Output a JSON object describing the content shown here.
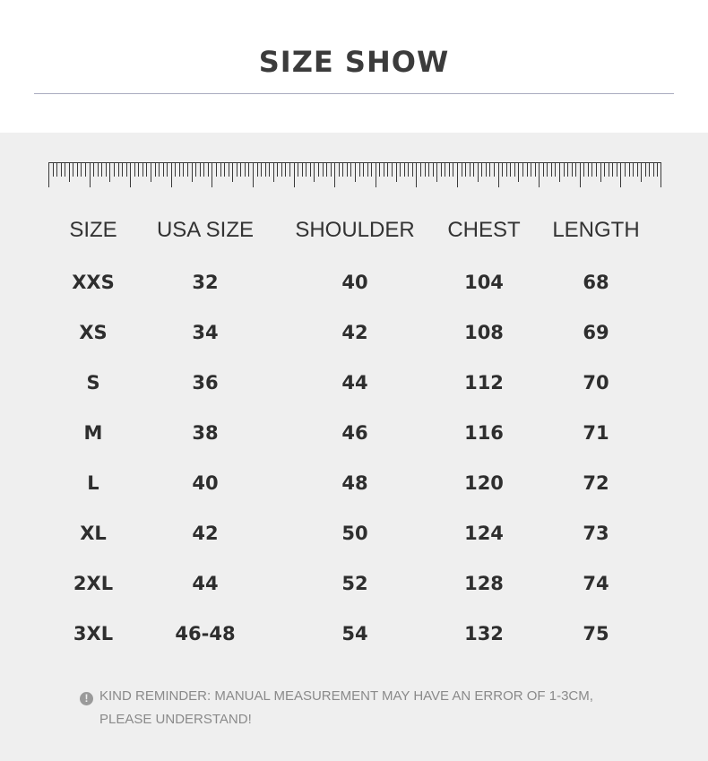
{
  "title": "SIZE SHOW",
  "table": {
    "headers": [
      "SIZE",
      "USA SIZE",
      "SHOULDER",
      "CHEST",
      "LENGTH"
    ],
    "rows": [
      [
        "XXS",
        "32",
        "40",
        "104",
        "68"
      ],
      [
        "XS",
        "34",
        "42",
        "108",
        "69"
      ],
      [
        "S",
        "36",
        "44",
        "112",
        "70"
      ],
      [
        "M",
        "38",
        "46",
        "116",
        "71"
      ],
      [
        "L",
        "40",
        "48",
        "120",
        "72"
      ],
      [
        "XL",
        "42",
        "50",
        "124",
        "73"
      ],
      [
        "2XL",
        "44",
        "52",
        "128",
        "74"
      ],
      [
        "3XL",
        "46-48",
        "54",
        "132",
        "75"
      ]
    ]
  },
  "reminder": {
    "icon": "info-icon",
    "line1": "KIND REMINDER: MANUAL MEASUREMENT MAY HAVE AN ERROR OF 1-3CM,",
    "line2": "PLEASE UNDERSTAND!"
  },
  "colors": {
    "title": "#3b3b3b",
    "panel_background": "#efefef",
    "rule": "#a9abbf",
    "text": "#2e2e2e",
    "reminder_text": "#8a8a8a"
  }
}
